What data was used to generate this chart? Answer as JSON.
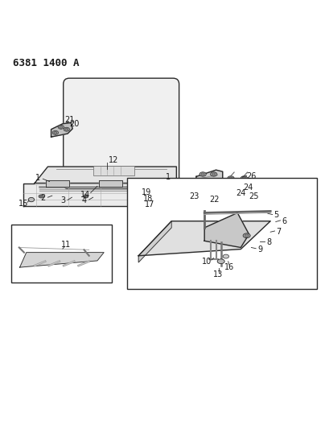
{
  "title": "6381 1400 A",
  "bg_color": "#ffffff",
  "line_color": "#2a2a2a",
  "text_color": "#1a1a1a",
  "title_fontsize": 9,
  "label_fontsize": 7,
  "figsize": [
    4.1,
    5.33
  ],
  "dpi": 100
}
